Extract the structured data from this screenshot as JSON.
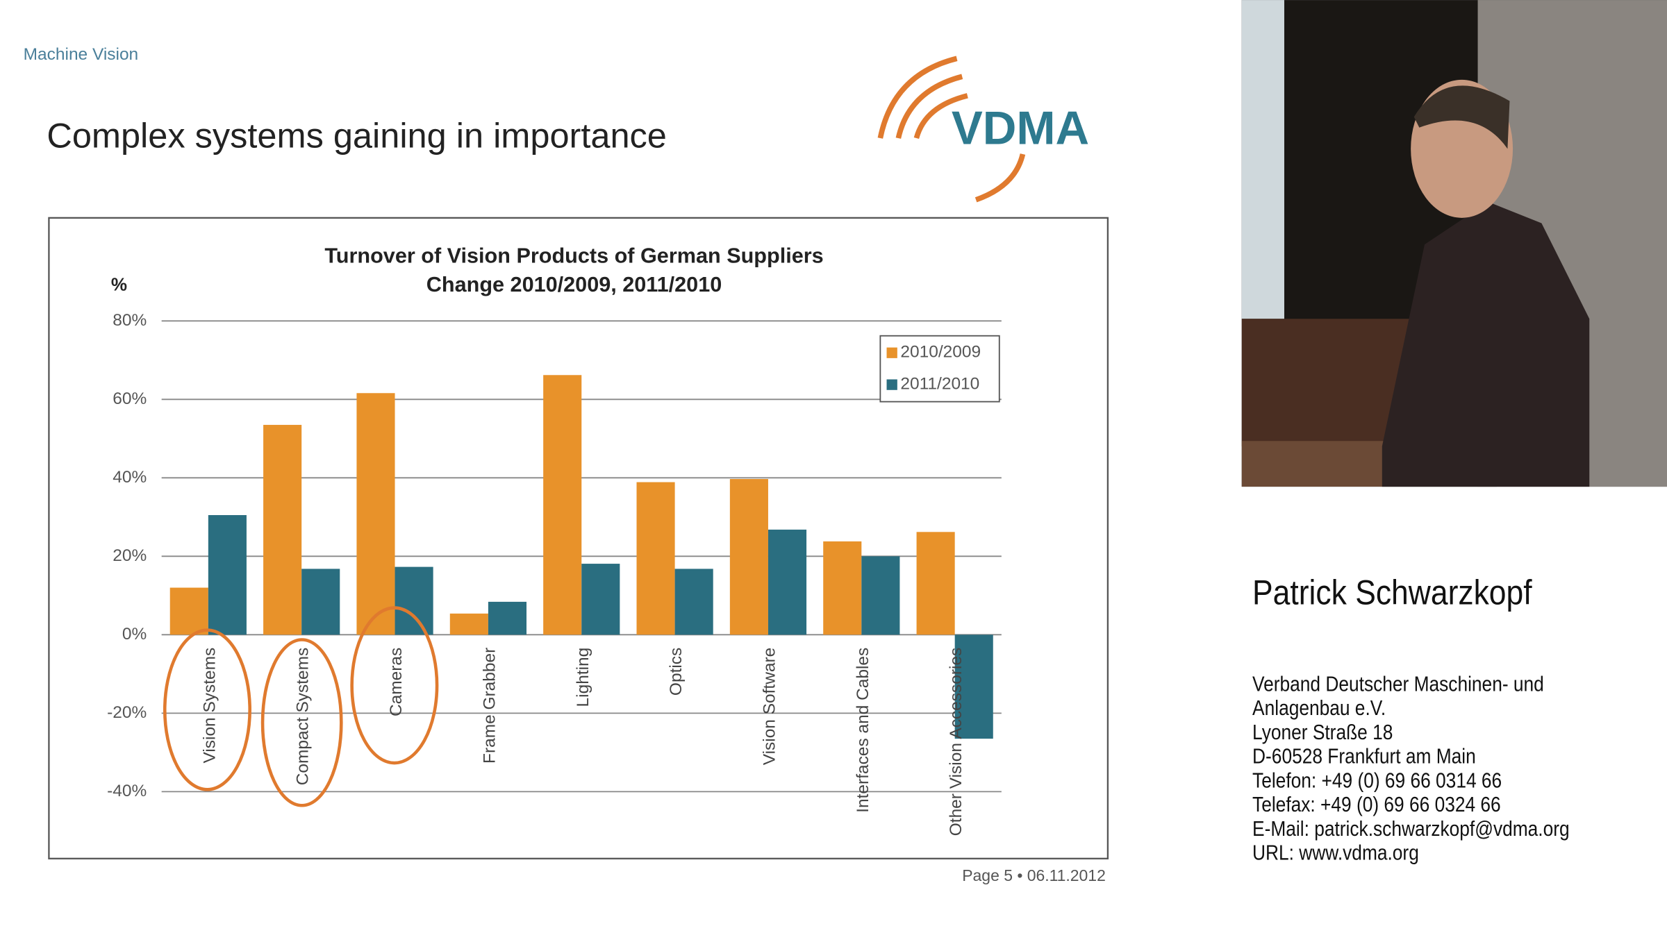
{
  "slide": {
    "section": "Machine Vision",
    "title": "Complex systems gaining in importance",
    "logo": "VDMA",
    "footer": "Page 5 • 06.11.2012"
  },
  "speaker": {
    "name": "Patrick Schwarzkopf",
    "address": [
      "Verband Deutscher Maschinen- und",
      "Anlagenbau e.V.",
      "Lyoner Straße 18",
      "D-60528 Frankfurt am Main",
      "Telefon: +49 (0) 69 66 0314 66",
      "Telefax: +49 (0) 69 66 0324 66",
      "E-Mail: patrick.schwarzkopf@vdma.org",
      "URL: www.vdma.org"
    ]
  },
  "chart_data": {
    "type": "bar",
    "title": "Turnover of Vision Products of German Suppliers",
    "subtitle": "Change 2010/2009, 2011/2010",
    "y_label": "%",
    "categories": [
      "Vision Systems",
      "Compact Systems",
      "Cameras",
      "Frame Grabber",
      "Lighting",
      "Optics",
      "Vision Software",
      "Interfaces and Cables",
      "Other Vision Accessories"
    ],
    "series": [
      {
        "name": "2010/2009",
        "color": "#e8922a",
        "values": [
          12,
          53.5,
          61.6,
          5.4,
          66.2,
          38.9,
          39.7,
          23.8,
          26.2
        ]
      },
      {
        "name": "2011/2010",
        "color": "#2a6e80",
        "values": [
          30.5,
          16.8,
          17.3,
          8.4,
          18.1,
          16.8,
          26.8,
          20,
          -26.5
        ]
      }
    ],
    "ylim": [
      -40,
      80
    ],
    "yticks": [
      {
        "value": -40,
        "label": "-40%"
      },
      {
        "value": -20,
        "label": "-20%"
      },
      {
        "value": 0,
        "label": "0%"
      },
      {
        "value": 20,
        "label": "20%"
      },
      {
        "value": 40,
        "label": "40%"
      },
      {
        "value": 60,
        "label": "60%"
      },
      {
        "value": 80,
        "label": "80%"
      }
    ],
    "grid": true,
    "legend": "top-right"
  }
}
